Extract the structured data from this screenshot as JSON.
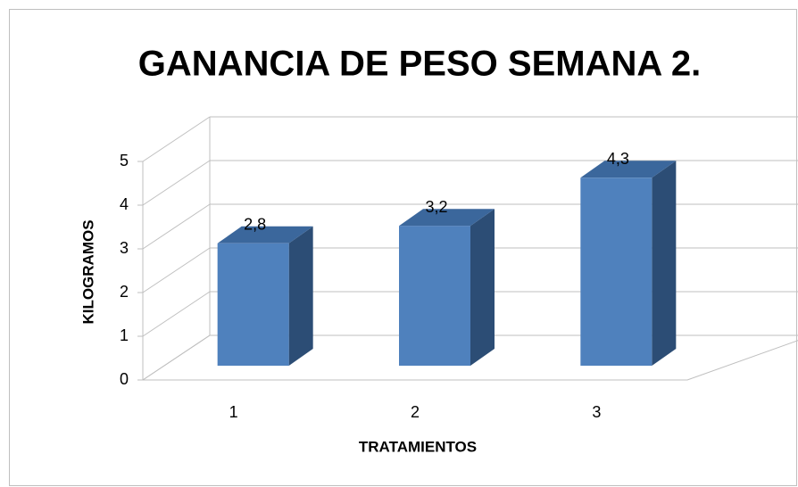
{
  "chart_data": {
    "type": "bar3d",
    "title": "GANANCIA DE PESO SEMANA 2.",
    "categories": [
      "1",
      "2",
      "3"
    ],
    "values": [
      2.8,
      3.2,
      4.3
    ],
    "value_labels": [
      "2,8",
      "3,2",
      "4,3"
    ],
    "color": "#4f81bd",
    "xlabel": "TRATAMIENTOS",
    "ylabel": "KILOGRAMOS",
    "ylim": [
      0,
      5
    ],
    "yticks": [
      0,
      1,
      2,
      3,
      4,
      5
    ],
    "grid": true
  }
}
